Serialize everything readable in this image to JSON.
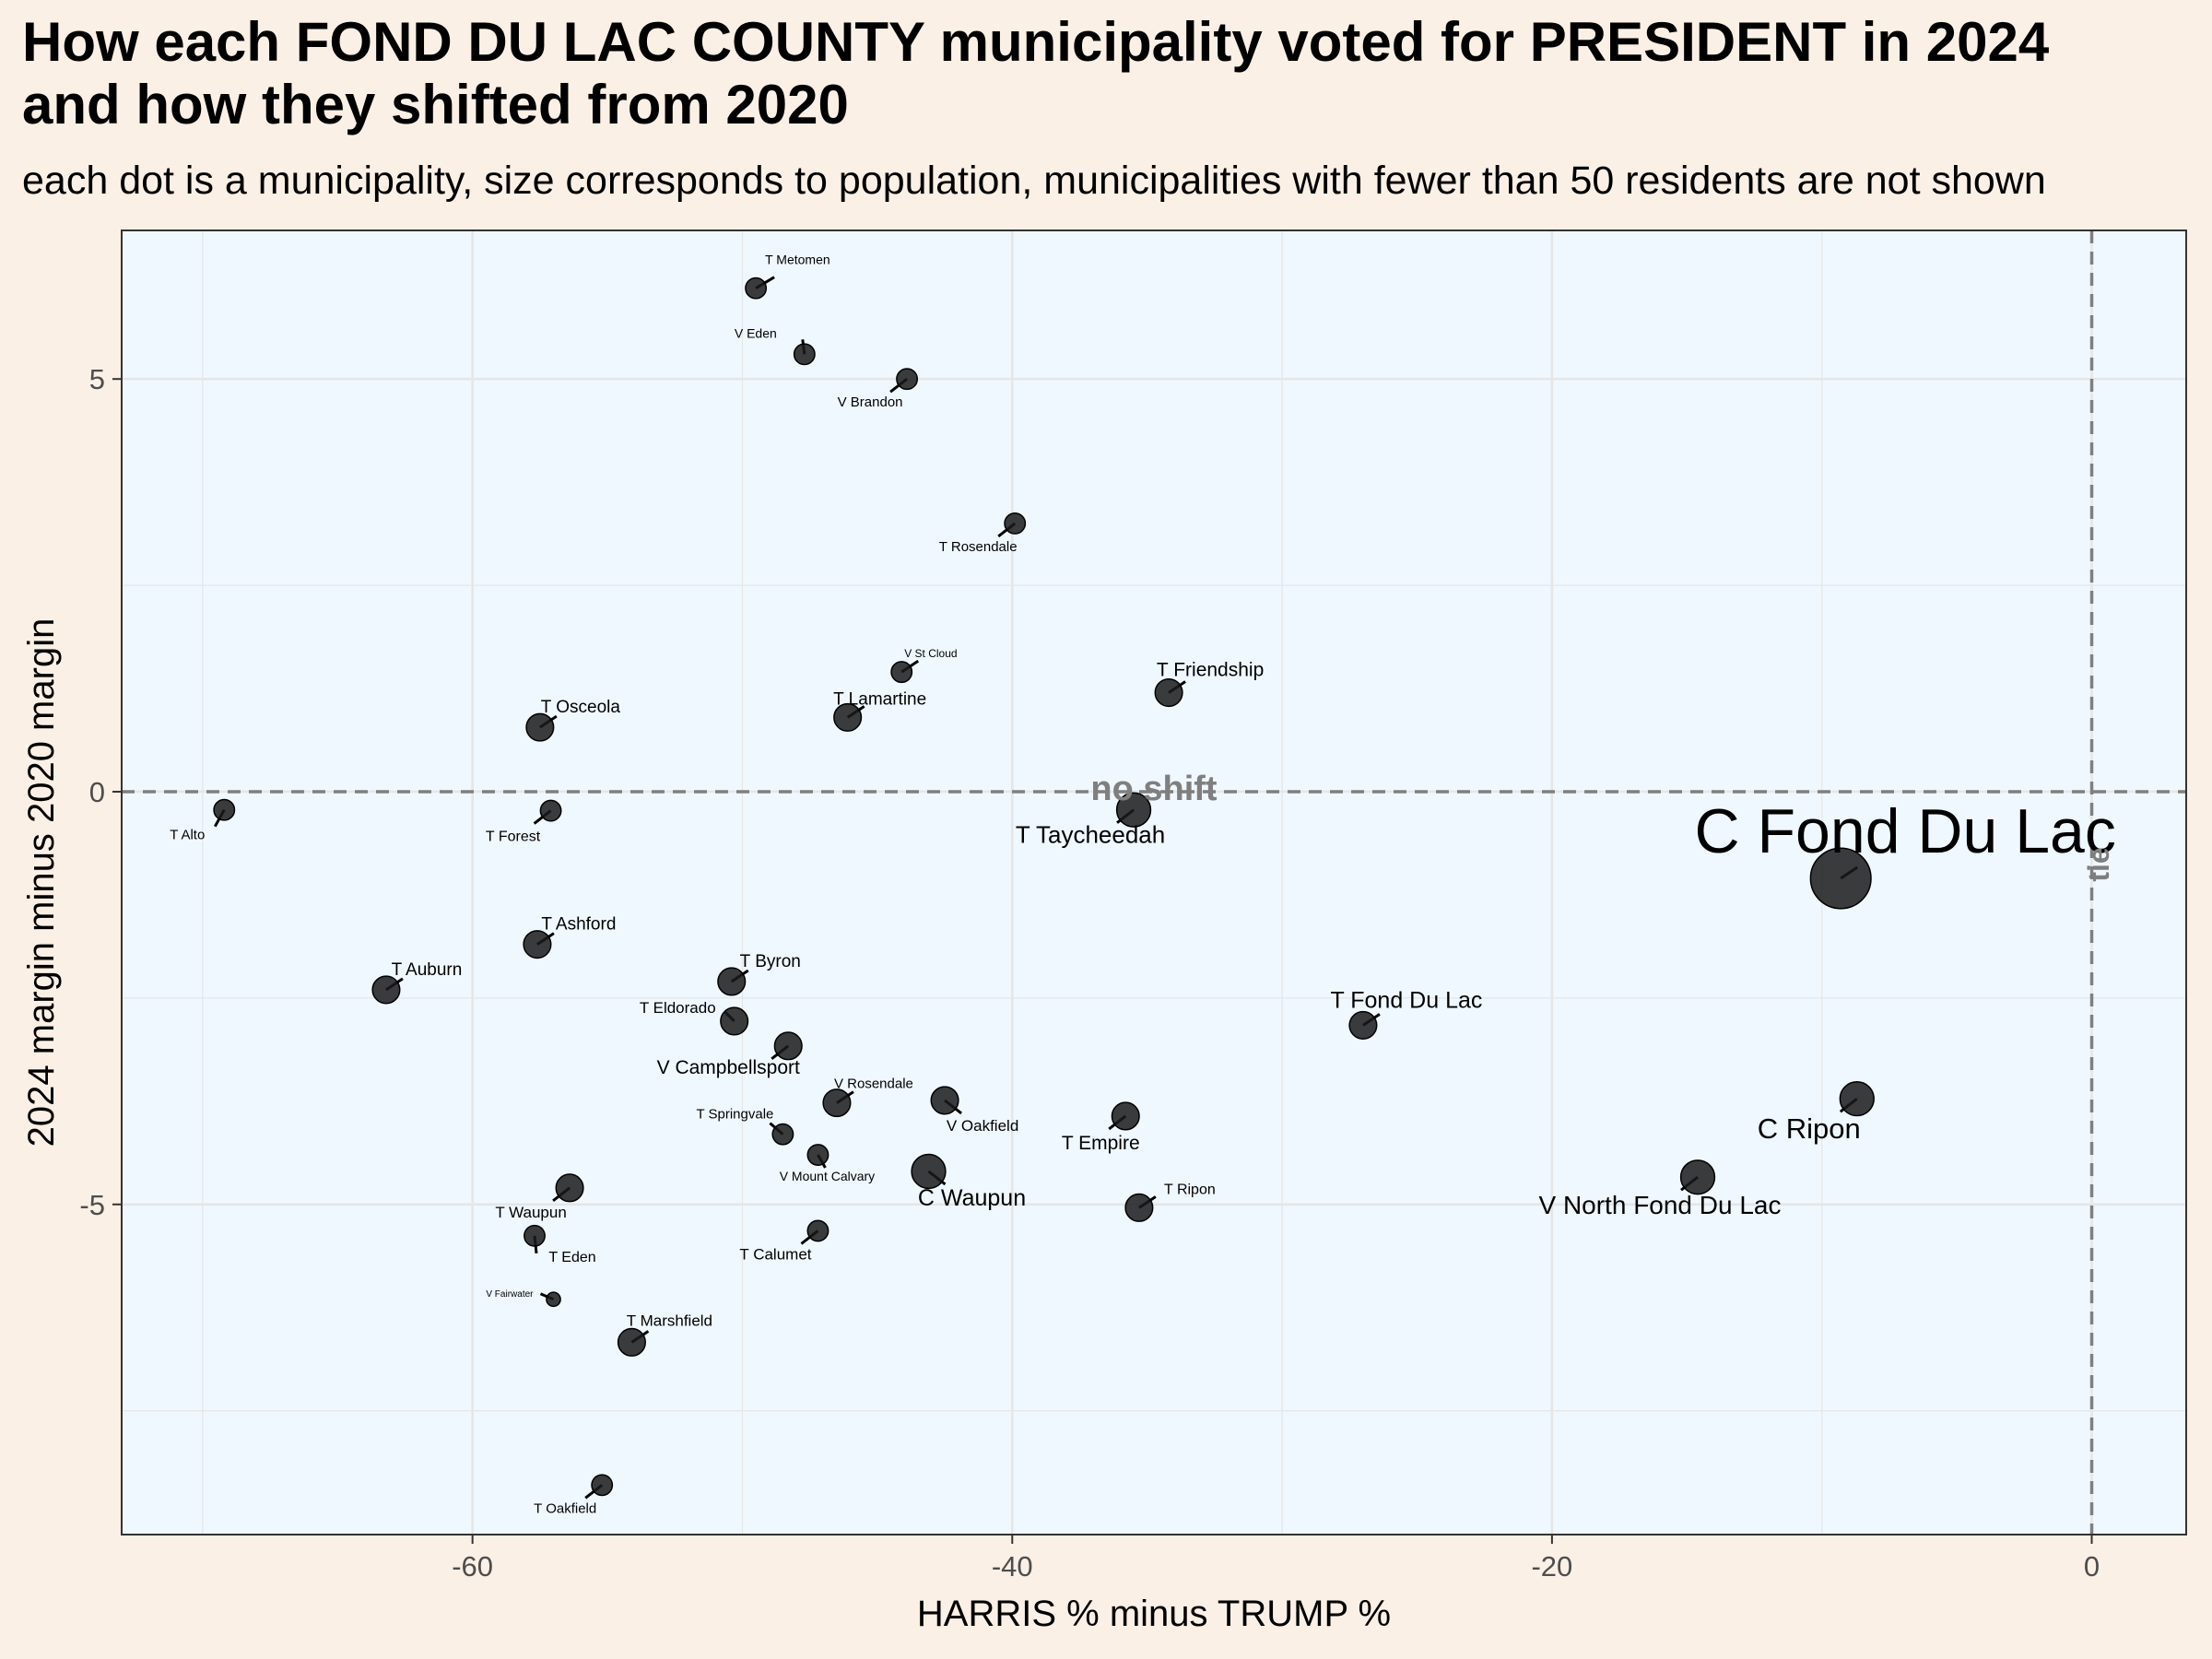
{
  "title_line1": "How each FOND DU LAC COUNTY municipality voted for PRESIDENT in 2024",
  "title_line2": "and how they shifted from 2020",
  "subtitle": "each dot is a municipality, size corresponds to population, municipalities with fewer than 50 residents are not shown",
  "chart_data": {
    "type": "scatter",
    "xlabel": "HARRIS % minus TRUMP %",
    "ylabel": "2024 margin minus 2020 margin",
    "xlim": [
      -73,
      3.5
    ],
    "ylim": [
      -9,
      6.8
    ],
    "x_ticks": [
      -60,
      -40,
      -20,
      0
    ],
    "x_tick_labels": [
      "-60",
      "-40",
      "-20",
      "0"
    ],
    "y_ticks": [
      5,
      0,
      -5
    ],
    "y_tick_labels": [
      "5",
      "0",
      "-5"
    ],
    "grid": true,
    "reference_lines": [
      {
        "axis": "y",
        "value": 0,
        "label": "no shift"
      },
      {
        "axis": "x",
        "value": 0,
        "label": "tie"
      }
    ],
    "colors": {
      "panel": "#f0f8ff",
      "background": "#faf0e6",
      "point": "#1a1a1a",
      "reference": "#7f7f7f",
      "grid": "#e6e6e6"
    },
    "points": [
      {
        "name": "T Metomen",
        "x": -49.5,
        "y": 6.1,
        "size": 2
      },
      {
        "name": "V Eden",
        "x": -47.7,
        "y": 5.3,
        "size": 2
      },
      {
        "name": "V Brandon",
        "x": -43.9,
        "y": 5.0,
        "size": 2
      },
      {
        "name": "T Rosendale",
        "x": -39.9,
        "y": 3.25,
        "size": 2
      },
      {
        "name": "V St Cloud",
        "x": -44.1,
        "y": 1.45,
        "size": 2
      },
      {
        "name": "T Lamartine",
        "x": -46.1,
        "y": 0.9,
        "size": 3
      },
      {
        "name": "T Friendship",
        "x": -34.2,
        "y": 1.2,
        "size": 3
      },
      {
        "name": "T Osceola",
        "x": -57.5,
        "y": 0.78,
        "size": 3
      },
      {
        "name": "T Alto",
        "x": -69.2,
        "y": -0.22,
        "size": 2
      },
      {
        "name": "T Forest",
        "x": -57.1,
        "y": -0.23,
        "size": 2
      },
      {
        "name": "T Taycheedah",
        "x": -35.5,
        "y": -0.22,
        "size": 4
      },
      {
        "name": "C Fond Du Lac",
        "x": -9.3,
        "y": -1.05,
        "size": 8
      },
      {
        "name": "T Ashford",
        "x": -57.6,
        "y": -1.85,
        "size": 3
      },
      {
        "name": "T Auburn",
        "x": -63.2,
        "y": -2.4,
        "size": 3
      },
      {
        "name": "T Byron",
        "x": -50.4,
        "y": -2.3,
        "size": 3
      },
      {
        "name": "T Eldorado",
        "x": -50.3,
        "y": -2.78,
        "size": 3
      },
      {
        "name": "V Campbellsport",
        "x": -48.3,
        "y": -3.08,
        "size": 3
      },
      {
        "name": "T Fond Du Lac",
        "x": -27.0,
        "y": -2.83,
        "size": 3
      },
      {
        "name": "V Rosendale",
        "x": -46.5,
        "y": -3.77,
        "size": 3
      },
      {
        "name": "V Oakfield",
        "x": -42.5,
        "y": -3.74,
        "size": 3
      },
      {
        "name": "T Empire",
        "x": -35.8,
        "y": -3.93,
        "size": 3
      },
      {
        "name": "C Ripon",
        "x": -8.7,
        "y": -3.72,
        "size": 4
      },
      {
        "name": "T Springvale",
        "x": -48.5,
        "y": -4.15,
        "size": 2
      },
      {
        "name": "V Mount Calvary",
        "x": -47.2,
        "y": -4.4,
        "size": 2
      },
      {
        "name": "C Waupun",
        "x": -43.1,
        "y": -4.6,
        "size": 4
      },
      {
        "name": "V North Fond Du Lac",
        "x": -14.6,
        "y": -4.67,
        "size": 4
      },
      {
        "name": "T Waupun",
        "x": -56.4,
        "y": -4.8,
        "size": 3
      },
      {
        "name": "T Ripon",
        "x": -35.3,
        "y": -5.04,
        "size": 3
      },
      {
        "name": "T Eden",
        "x": -57.7,
        "y": -5.38,
        "size": 2
      },
      {
        "name": "T Calumet",
        "x": -47.2,
        "y": -5.32,
        "size": 2
      },
      {
        "name": "V Fairwater",
        "x": -57.0,
        "y": -6.15,
        "size": 1
      },
      {
        "name": "T Marshfield",
        "x": -54.1,
        "y": -6.67,
        "size": 3
      },
      {
        "name": "T Oakfield",
        "x": -55.2,
        "y": -8.4,
        "size": 2
      }
    ]
  }
}
